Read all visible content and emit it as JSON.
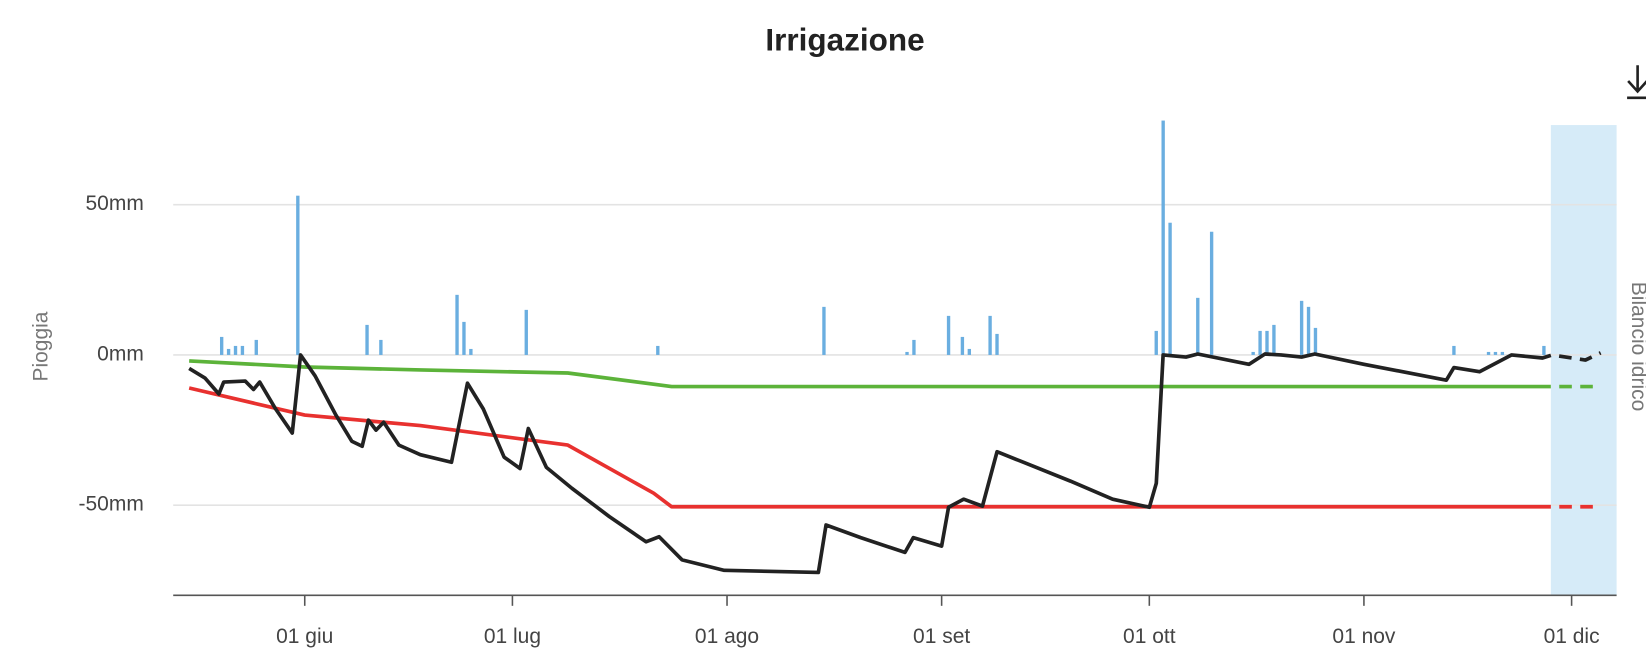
{
  "chart_data": {
    "type": "combo",
    "title": "Irrigazione",
    "ylabel": "Pioggia",
    "y2label": "Bilancio idrico",
    "xlim": [
      133,
      341.5
    ],
    "ylim": [
      -80,
      80
    ],
    "yticks": [
      {
        "value": -50,
        "label": "-50mm"
      },
      {
        "value": 0,
        "label": "0mm"
      },
      {
        "value": 50,
        "label": "50mm"
      }
    ],
    "xticks": [
      {
        "value": 152,
        "label": "01 giu"
      },
      {
        "value": 182,
        "label": "01 lug"
      },
      {
        "value": 213,
        "label": "01 ago"
      },
      {
        "value": 244,
        "label": "01 set"
      },
      {
        "value": 274,
        "label": "01 ott"
      },
      {
        "value": 305,
        "label": "01 nov"
      },
      {
        "value": 335,
        "label": "01 dic"
      }
    ],
    "grid": true,
    "forecast_band": [
      332,
      341.5
    ],
    "band_color": "#d6ebf8",
    "series": [
      {
        "type": "bar",
        "color": "#6aaee0",
        "x": [
          140,
          141,
          142,
          143,
          145,
          151,
          161,
          163,
          174,
          175,
          176,
          184,
          203,
          227,
          239,
          240,
          245,
          247,
          248,
          251,
          252,
          275,
          276,
          277,
          281,
          283,
          289,
          290,
          291,
          292,
          296,
          297,
          298,
          318,
          323,
          324,
          325,
          331
        ],
        "values": [
          6,
          2,
          3,
          3,
          5,
          53,
          10,
          5,
          20,
          11,
          2,
          15,
          3,
          16,
          1,
          5,
          13,
          6,
          2,
          13,
          7,
          8,
          78,
          44,
          19,
          41,
          1,
          8,
          8,
          10,
          18,
          16,
          9,
          3,
          1,
          1,
          1,
          3
        ]
      },
      {
        "type": "line",
        "color": "#5cb33a",
        "x": [
          135.3,
          152,
          168.7,
          190,
          205,
          339.2
        ],
        "values": [
          -2,
          -4,
          -5,
          -6,
          -10.5,
          -10.5
        ]
      },
      {
        "type": "line",
        "color": "#e8312f",
        "x": [
          135.3,
          152,
          168.7,
          190,
          202.4,
          205,
          339.2
        ],
        "values": [
          -11,
          -20,
          -23.5,
          -30,
          -46,
          -50.5,
          -50.5
        ]
      },
      {
        "type": "line",
        "color": "#222222",
        "x": [
          135.3,
          137.6,
          139.6,
          140.3,
          143.4,
          144.6,
          145.5,
          147.8,
          150.2,
          151.4,
          153.5,
          156.5,
          158.8,
          160.3,
          161.2,
          162.3,
          163.4,
          165.6,
          168.7,
          173.2,
          175.5,
          177.8,
          180.8,
          183.1,
          184.3,
          186.9,
          190.6,
          196,
          201.3,
          203.2,
          206.5,
          212.6,
          226.2,
          227.3,
          232.3,
          238.7,
          239.9,
          244,
          245,
          247.2,
          249.9,
          252,
          255.8,
          262.6,
          268.7,
          274,
          275,
          276,
          279.3,
          281,
          288.4,
          290.7,
          293,
          296,
          297.9,
          305,
          316.9,
          318,
          321.7,
          326.3,
          330.8,
          332.2,
          337,
          339.2
        ],
        "values": [
          -4.5,
          -7.7,
          -13,
          -9,
          -8.7,
          -11.5,
          -9,
          -18,
          -26,
          0,
          -7,
          -20,
          -28.7,
          -30.4,
          -21.7,
          -25,
          -22.4,
          -30,
          -33.2,
          -35.7,
          -9.4,
          -18,
          -34,
          -37.8,
          -24.5,
          -37.4,
          -44.4,
          -53.8,
          -62.2,
          -60.5,
          -68.2,
          -71.7,
          -72.4,
          -56.6,
          -60.8,
          -65.7,
          -60.8,
          -63.6,
          -50.7,
          -48,
          -50.3,
          -32.2,
          -35.7,
          -42,
          -48,
          -50.7,
          -42.7,
          0,
          -0.7,
          0.3,
          -3.1,
          0.3,
          0,
          -0.7,
          0.3,
          -3.1,
          -8.4,
          -4.2,
          -5.6,
          0,
          -1,
          0,
          -1.7,
          0.7
        ]
      }
    ]
  }
}
